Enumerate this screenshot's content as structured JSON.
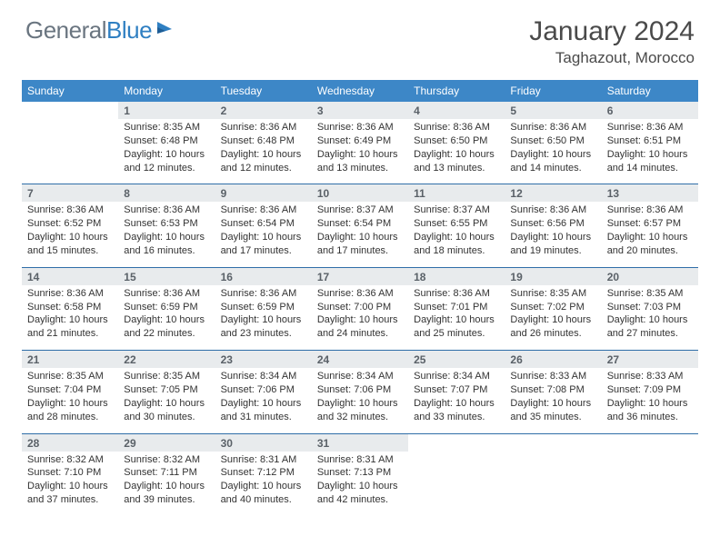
{
  "brand": {
    "part1": "General",
    "part2": "Blue"
  },
  "title": "January 2024",
  "location": "Taghazout, Morocco",
  "colors": {
    "header_bg": "#3d87c7",
    "separator": "#2f6ea8",
    "daynum_bg": "#e8ebed",
    "text": "#333333",
    "brand_gray": "#6a7580",
    "brand_blue": "#2f7fc2"
  },
  "dow": [
    "Sunday",
    "Monday",
    "Tuesday",
    "Wednesday",
    "Thursday",
    "Friday",
    "Saturday"
  ],
  "weeks": [
    [
      null,
      {
        "n": "1",
        "sunrise": "8:35 AM",
        "sunset": "6:48 PM",
        "dl1": "Daylight: 10 hours",
        "dl2": "and 12 minutes."
      },
      {
        "n": "2",
        "sunrise": "8:36 AM",
        "sunset": "6:48 PM",
        "dl1": "Daylight: 10 hours",
        "dl2": "and 12 minutes."
      },
      {
        "n": "3",
        "sunrise": "8:36 AM",
        "sunset": "6:49 PM",
        "dl1": "Daylight: 10 hours",
        "dl2": "and 13 minutes."
      },
      {
        "n": "4",
        "sunrise": "8:36 AM",
        "sunset": "6:50 PM",
        "dl1": "Daylight: 10 hours",
        "dl2": "and 13 minutes."
      },
      {
        "n": "5",
        "sunrise": "8:36 AM",
        "sunset": "6:50 PM",
        "dl1": "Daylight: 10 hours",
        "dl2": "and 14 minutes."
      },
      {
        "n": "6",
        "sunrise": "8:36 AM",
        "sunset": "6:51 PM",
        "dl1": "Daylight: 10 hours",
        "dl2": "and 14 minutes."
      }
    ],
    [
      {
        "n": "7",
        "sunrise": "8:36 AM",
        "sunset": "6:52 PM",
        "dl1": "Daylight: 10 hours",
        "dl2": "and 15 minutes."
      },
      {
        "n": "8",
        "sunrise": "8:36 AM",
        "sunset": "6:53 PM",
        "dl1": "Daylight: 10 hours",
        "dl2": "and 16 minutes."
      },
      {
        "n": "9",
        "sunrise": "8:36 AM",
        "sunset": "6:54 PM",
        "dl1": "Daylight: 10 hours",
        "dl2": "and 17 minutes."
      },
      {
        "n": "10",
        "sunrise": "8:37 AM",
        "sunset": "6:54 PM",
        "dl1": "Daylight: 10 hours",
        "dl2": "and 17 minutes."
      },
      {
        "n": "11",
        "sunrise": "8:37 AM",
        "sunset": "6:55 PM",
        "dl1": "Daylight: 10 hours",
        "dl2": "and 18 minutes."
      },
      {
        "n": "12",
        "sunrise": "8:36 AM",
        "sunset": "6:56 PM",
        "dl1": "Daylight: 10 hours",
        "dl2": "and 19 minutes."
      },
      {
        "n": "13",
        "sunrise": "8:36 AM",
        "sunset": "6:57 PM",
        "dl1": "Daylight: 10 hours",
        "dl2": "and 20 minutes."
      }
    ],
    [
      {
        "n": "14",
        "sunrise": "8:36 AM",
        "sunset": "6:58 PM",
        "dl1": "Daylight: 10 hours",
        "dl2": "and 21 minutes."
      },
      {
        "n": "15",
        "sunrise": "8:36 AM",
        "sunset": "6:59 PM",
        "dl1": "Daylight: 10 hours",
        "dl2": "and 22 minutes."
      },
      {
        "n": "16",
        "sunrise": "8:36 AM",
        "sunset": "6:59 PM",
        "dl1": "Daylight: 10 hours",
        "dl2": "and 23 minutes."
      },
      {
        "n": "17",
        "sunrise": "8:36 AM",
        "sunset": "7:00 PM",
        "dl1": "Daylight: 10 hours",
        "dl2": "and 24 minutes."
      },
      {
        "n": "18",
        "sunrise": "8:36 AM",
        "sunset": "7:01 PM",
        "dl1": "Daylight: 10 hours",
        "dl2": "and 25 minutes."
      },
      {
        "n": "19",
        "sunrise": "8:35 AM",
        "sunset": "7:02 PM",
        "dl1": "Daylight: 10 hours",
        "dl2": "and 26 minutes."
      },
      {
        "n": "20",
        "sunrise": "8:35 AM",
        "sunset": "7:03 PM",
        "dl1": "Daylight: 10 hours",
        "dl2": "and 27 minutes."
      }
    ],
    [
      {
        "n": "21",
        "sunrise": "8:35 AM",
        "sunset": "7:04 PM",
        "dl1": "Daylight: 10 hours",
        "dl2": "and 28 minutes."
      },
      {
        "n": "22",
        "sunrise": "8:35 AM",
        "sunset": "7:05 PM",
        "dl1": "Daylight: 10 hours",
        "dl2": "and 30 minutes."
      },
      {
        "n": "23",
        "sunrise": "8:34 AM",
        "sunset": "7:06 PM",
        "dl1": "Daylight: 10 hours",
        "dl2": "and 31 minutes."
      },
      {
        "n": "24",
        "sunrise": "8:34 AM",
        "sunset": "7:06 PM",
        "dl1": "Daylight: 10 hours",
        "dl2": "and 32 minutes."
      },
      {
        "n": "25",
        "sunrise": "8:34 AM",
        "sunset": "7:07 PM",
        "dl1": "Daylight: 10 hours",
        "dl2": "and 33 minutes."
      },
      {
        "n": "26",
        "sunrise": "8:33 AM",
        "sunset": "7:08 PM",
        "dl1": "Daylight: 10 hours",
        "dl2": "and 35 minutes."
      },
      {
        "n": "27",
        "sunrise": "8:33 AM",
        "sunset": "7:09 PM",
        "dl1": "Daylight: 10 hours",
        "dl2": "and 36 minutes."
      }
    ],
    [
      {
        "n": "28",
        "sunrise": "8:32 AM",
        "sunset": "7:10 PM",
        "dl1": "Daylight: 10 hours",
        "dl2": "and 37 minutes."
      },
      {
        "n": "29",
        "sunrise": "8:32 AM",
        "sunset": "7:11 PM",
        "dl1": "Daylight: 10 hours",
        "dl2": "and 39 minutes."
      },
      {
        "n": "30",
        "sunrise": "8:31 AM",
        "sunset": "7:12 PM",
        "dl1": "Daylight: 10 hours",
        "dl2": "and 40 minutes."
      },
      {
        "n": "31",
        "sunrise": "8:31 AM",
        "sunset": "7:13 PM",
        "dl1": "Daylight: 10 hours",
        "dl2": "and 42 minutes."
      },
      null,
      null,
      null
    ]
  ]
}
